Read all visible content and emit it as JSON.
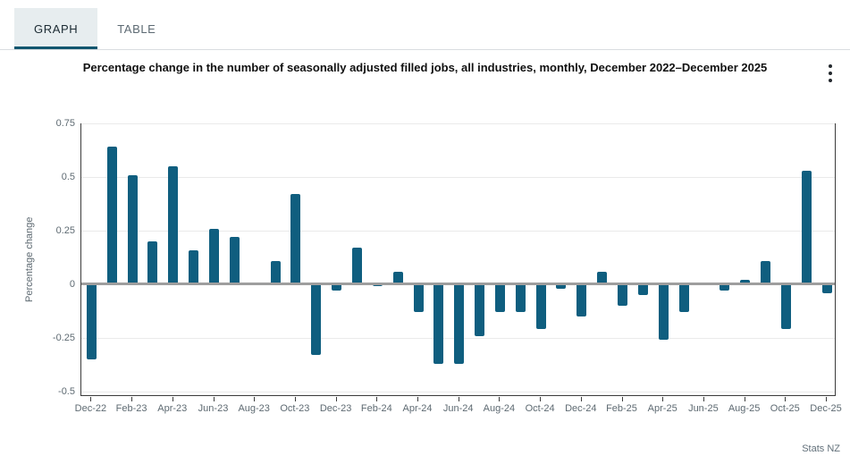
{
  "tabs": [
    {
      "label": "GRAPH",
      "active": true
    },
    {
      "label": "TABLE",
      "active": false
    }
  ],
  "title": "Percentage change in the number of seasonally adjusted filled jobs, all industries, monthly, December 2022–December 2025",
  "menu_icon": "kebab-menu-icon",
  "source": "Stats NZ",
  "colors": {
    "bar": "#0f5e7f",
    "active_tab_underline": "#11566f",
    "active_tab_bg": "#e7edef",
    "zero_line": "#9e9e9e",
    "gridline": "#eaeaea",
    "axis_line": "#3c3c3c",
    "tick_text": "#5e6a72"
  },
  "chart_data": {
    "type": "bar",
    "title": "Percentage change in the number of seasonally adjusted filled jobs, all industries, monthly, December 2022–December 2025",
    "ylabel": "Percentage change",
    "xlabel": "",
    "x": [
      "Dec-22",
      "Jan-23",
      "Feb-23",
      "Mar-23",
      "Apr-23",
      "May-23",
      "Jun-23",
      "Jul-23",
      "Aug-23",
      "Sep-23",
      "Oct-23",
      "Nov-23",
      "Dec-23",
      "Jan-24",
      "Feb-24",
      "Mar-24",
      "Apr-24",
      "May-24",
      "Jun-24",
      "Jul-24",
      "Aug-24",
      "Sep-24",
      "Oct-24",
      "Nov-24",
      "Dec-24",
      "Jan-25",
      "Feb-25",
      "Mar-25",
      "Apr-25",
      "May-25",
      "Jun-25",
      "Jul-25",
      "Aug-25",
      "Sep-25",
      "Oct-25",
      "Nov-25",
      "Dec-25"
    ],
    "values": [
      -0.35,
      0.64,
      0.51,
      0.2,
      0.55,
      0.16,
      0.26,
      0.22,
      0.0,
      0.11,
      0.42,
      -0.33,
      -0.03,
      0.17,
      -0.01,
      0.06,
      -0.13,
      -0.37,
      -0.37,
      -0.24,
      -0.13,
      -0.13,
      -0.21,
      -0.02,
      -0.15,
      0.06,
      -0.1,
      -0.05,
      -0.26,
      -0.13,
      0.01,
      -0.03,
      0.02,
      0.11,
      -0.21,
      0.53,
      -0.04
    ],
    "x_tick_labels": [
      "Dec-22",
      "Feb-23",
      "Apr-23",
      "Jun-23",
      "Aug-23",
      "Oct-23",
      "Dec-23",
      "Feb-24",
      "Apr-24",
      "Jun-24",
      "Aug-24",
      "Oct-24",
      "Dec-24",
      "Feb-25",
      "Apr-25",
      "Jun-25",
      "Aug-25",
      "Oct-25",
      "Dec-25"
    ],
    "y_ticks": [
      0.75,
      0.5,
      0.25,
      0,
      -0.25,
      -0.5
    ],
    "y_tick_labels": [
      "0.75",
      "0.5",
      "0.25",
      "0",
      "-0.25",
      "-0.5"
    ],
    "ylim": [
      -0.52,
      0.75
    ],
    "grid": "horizontal",
    "zero_line": true,
    "legend": "none"
  }
}
